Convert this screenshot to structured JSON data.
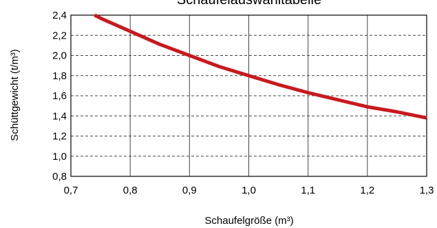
{
  "chart_data": {
    "type": "line",
    "title": "Schaufelauswahltabelle",
    "xlabel": "Schaufelgröße (m³)",
    "ylabel": "Schüttgewicht (t/m³)",
    "xlim": [
      0.7,
      1.3
    ],
    "ylim": [
      0.8,
      2.4
    ],
    "x_ticks": [
      "0,7",
      "0,8",
      "0,9",
      "1,0",
      "1,1",
      "1,2",
      "1,3"
    ],
    "y_ticks": [
      "2,4",
      "2,2",
      "2,0",
      "1,8",
      "1,6",
      "1,4",
      "1,2",
      "1,0",
      "0,8"
    ],
    "grid": {
      "vertical": "solid",
      "horizontal": "dashed"
    },
    "series": [
      {
        "x": [
          0.74,
          0.75,
          0.8,
          0.85,
          0.9,
          0.95,
          1.0,
          1.05,
          1.1,
          1.15,
          1.2,
          1.25,
          1.3
        ],
        "y": [
          2.4,
          2.37,
          2.24,
          2.11,
          2.0,
          1.89,
          1.8,
          1.71,
          1.63,
          1.56,
          1.49,
          1.44,
          1.38
        ]
      }
    ],
    "colors": {
      "line": "#c8191f",
      "grid": "#444444",
      "axis": "#000000"
    }
  }
}
